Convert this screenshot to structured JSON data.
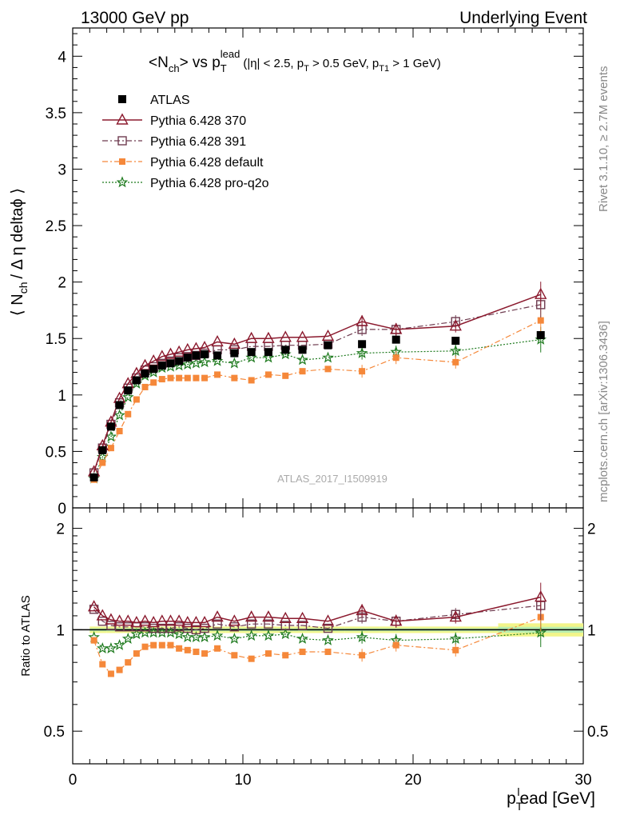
{
  "header": {
    "left": "13000 GeV pp",
    "right": "Underlying Event"
  },
  "side": {
    "rivet": "Rivet 3.1.10, ≥ 2.7M events",
    "mcplots": "mcplots.cern.ch [arXiv:1306.3436]"
  },
  "plot_title": {
    "main_a": "<N",
    "main_sub": "ch",
    "main_b": "> vs p",
    "main_sub2": "T",
    "main_sup": "lead",
    "cuts": "(|η| < 2.5, p",
    "cuts_sub": "T",
    "cuts_b": " > 0.5 GeV, p",
    "cuts_sub2": "T1",
    "cuts_c": " > 1 GeV)"
  },
  "watermark": "ATLAS_2017_I1509919",
  "axes": {
    "ylabel_main": "⟨ N",
    "ylabel_main_sub": "ch",
    "ylabel_main_rest": "/ Δ η deltaϕ ⟩",
    "ylabel_ratio": "Ratio to ATLAS",
    "xlabel_a": "p",
    "xlabel_sub": "T",
    "xlabel_sup": "l",
    "xlabel_b": "ead [GeV]"
  },
  "colors": {
    "atlas": "#000000",
    "p370": "#8b1a2e",
    "p391": "#6e3b4f",
    "pdefault": "#f5883a",
    "pq2o": "#1e7a1e",
    "band_outer": "#f2f58a",
    "band_inner": "#b8eeb0"
  },
  "chart_data": [
    {
      "type": "scatter",
      "panel": "main",
      "xlim": [
        0,
        30
      ],
      "ylim": [
        0,
        4.25
      ],
      "xticks": [
        0,
        10,
        20,
        30
      ],
      "yticks": [
        0,
        0.5,
        1,
        1.5,
        2,
        2.5,
        3,
        3.5,
        4
      ],
      "ytick_labels": [
        "0",
        "0.5",
        "1",
        "1.5",
        "2",
        "2.5",
        "3",
        "3.5",
        "4"
      ],
      "legend_position": "top-left",
      "x": [
        1.25,
        1.75,
        2.25,
        2.75,
        3.25,
        3.75,
        4.25,
        4.75,
        5.25,
        5.75,
        6.25,
        6.75,
        7.25,
        7.75,
        8.5,
        9.5,
        10.5,
        11.5,
        12.5,
        13.5,
        15.0,
        17.0,
        19.0,
        22.5,
        27.5
      ],
      "series": [
        {
          "name": "ATLAS",
          "marker": "filled-square",
          "line": "none",
          "values": [
            0.27,
            0.51,
            0.72,
            0.91,
            1.04,
            1.13,
            1.19,
            1.23,
            1.26,
            1.28,
            1.3,
            1.33,
            1.35,
            1.36,
            1.35,
            1.37,
            1.38,
            1.38,
            1.4,
            1.4,
            1.44,
            1.45,
            1.49,
            1.48,
            1.53
          ]
        },
        {
          "name": "Pythia 6.428 370",
          "marker": "open-triangle",
          "line": "solid",
          "values": [
            0.32,
            0.55,
            0.76,
            0.97,
            1.1,
            1.19,
            1.26,
            1.3,
            1.34,
            1.36,
            1.38,
            1.4,
            1.41,
            1.42,
            1.47,
            1.45,
            1.5,
            1.5,
            1.51,
            1.51,
            1.52,
            1.65,
            1.58,
            1.61,
            1.89
          ]
        },
        {
          "name": "Pythia 6.428 391",
          "marker": "open-square",
          "line": "dashdot",
          "values": [
            0.31,
            0.53,
            0.74,
            0.93,
            1.06,
            1.15,
            1.22,
            1.25,
            1.28,
            1.3,
            1.33,
            1.34,
            1.35,
            1.37,
            1.4,
            1.4,
            1.43,
            1.43,
            1.44,
            1.44,
            1.45,
            1.58,
            1.58,
            1.65,
            1.8
          ]
        },
        {
          "name": "Pythia 6.428 default",
          "marker": "filled-square",
          "line": "dashdot",
          "values": [
            0.25,
            0.4,
            0.53,
            0.68,
            0.83,
            0.96,
            1.07,
            1.11,
            1.14,
            1.15,
            1.15,
            1.15,
            1.15,
            1.15,
            1.18,
            1.15,
            1.13,
            1.18,
            1.17,
            1.21,
            1.23,
            1.21,
            1.33,
            1.29,
            1.66
          ]
        },
        {
          "name": "Pythia 6.428 pro-q2o",
          "marker": "star",
          "line": "dotted",
          "values": [
            0.26,
            0.45,
            0.63,
            0.82,
            0.98,
            1.1,
            1.17,
            1.2,
            1.24,
            1.25,
            1.26,
            1.27,
            1.28,
            1.29,
            1.3,
            1.28,
            1.33,
            1.33,
            1.36,
            1.31,
            1.33,
            1.37,
            1.38,
            1.39,
            1.49
          ]
        }
      ]
    },
    {
      "type": "scatter",
      "panel": "ratio",
      "xlim": [
        0,
        30
      ],
      "ylim": [
        0.4,
        2.3
      ],
      "log_y": true,
      "xticks": [
        0,
        10,
        20,
        30
      ],
      "yticks": [
        0.5,
        1,
        2
      ],
      "ytick_labels": [
        "0.5",
        "1",
        "2"
      ],
      "x": [
        1.25,
        1.75,
        2.25,
        2.75,
        3.25,
        3.75,
        4.25,
        4.75,
        5.25,
        5.75,
        6.25,
        6.75,
        7.25,
        7.75,
        8.5,
        9.5,
        10.5,
        11.5,
        12.5,
        13.5,
        15.0,
        17.0,
        19.0,
        22.5,
        27.5
      ],
      "series": [
        {
          "name": "Pythia 6.428 370",
          "values": [
            1.17,
            1.1,
            1.07,
            1.06,
            1.06,
            1.05,
            1.06,
            1.05,
            1.06,
            1.06,
            1.06,
            1.05,
            1.05,
            1.05,
            1.09,
            1.06,
            1.09,
            1.09,
            1.08,
            1.08,
            1.06,
            1.14,
            1.06,
            1.09,
            1.25
          ]
        },
        {
          "name": "Pythia 6.428 391",
          "values": [
            1.15,
            1.06,
            1.03,
            1.02,
            1.02,
            1.02,
            1.02,
            1.01,
            1.01,
            1.01,
            1.02,
            1.01,
            1.0,
            1.01,
            1.04,
            1.02,
            1.04,
            1.04,
            1.03,
            1.03,
            1.01,
            1.09,
            1.06,
            1.11,
            1.18
          ]
        },
        {
          "name": "Pythia 6.428 default",
          "values": [
            0.93,
            0.79,
            0.74,
            0.76,
            0.8,
            0.85,
            0.89,
            0.9,
            0.9,
            0.9,
            0.88,
            0.87,
            0.86,
            0.85,
            0.88,
            0.84,
            0.82,
            0.85,
            0.84,
            0.86,
            0.86,
            0.84,
            0.9,
            0.87,
            1.09
          ]
        },
        {
          "name": "Pythia 6.428 pro-q2o",
          "values": [
            0.95,
            0.88,
            0.88,
            0.9,
            0.94,
            0.97,
            0.98,
            0.98,
            0.98,
            0.98,
            0.97,
            0.95,
            0.95,
            0.95,
            0.96,
            0.94,
            0.96,
            0.96,
            0.97,
            0.94,
            0.93,
            0.95,
            0.93,
            0.94,
            0.98
          ]
        }
      ]
    }
  ]
}
